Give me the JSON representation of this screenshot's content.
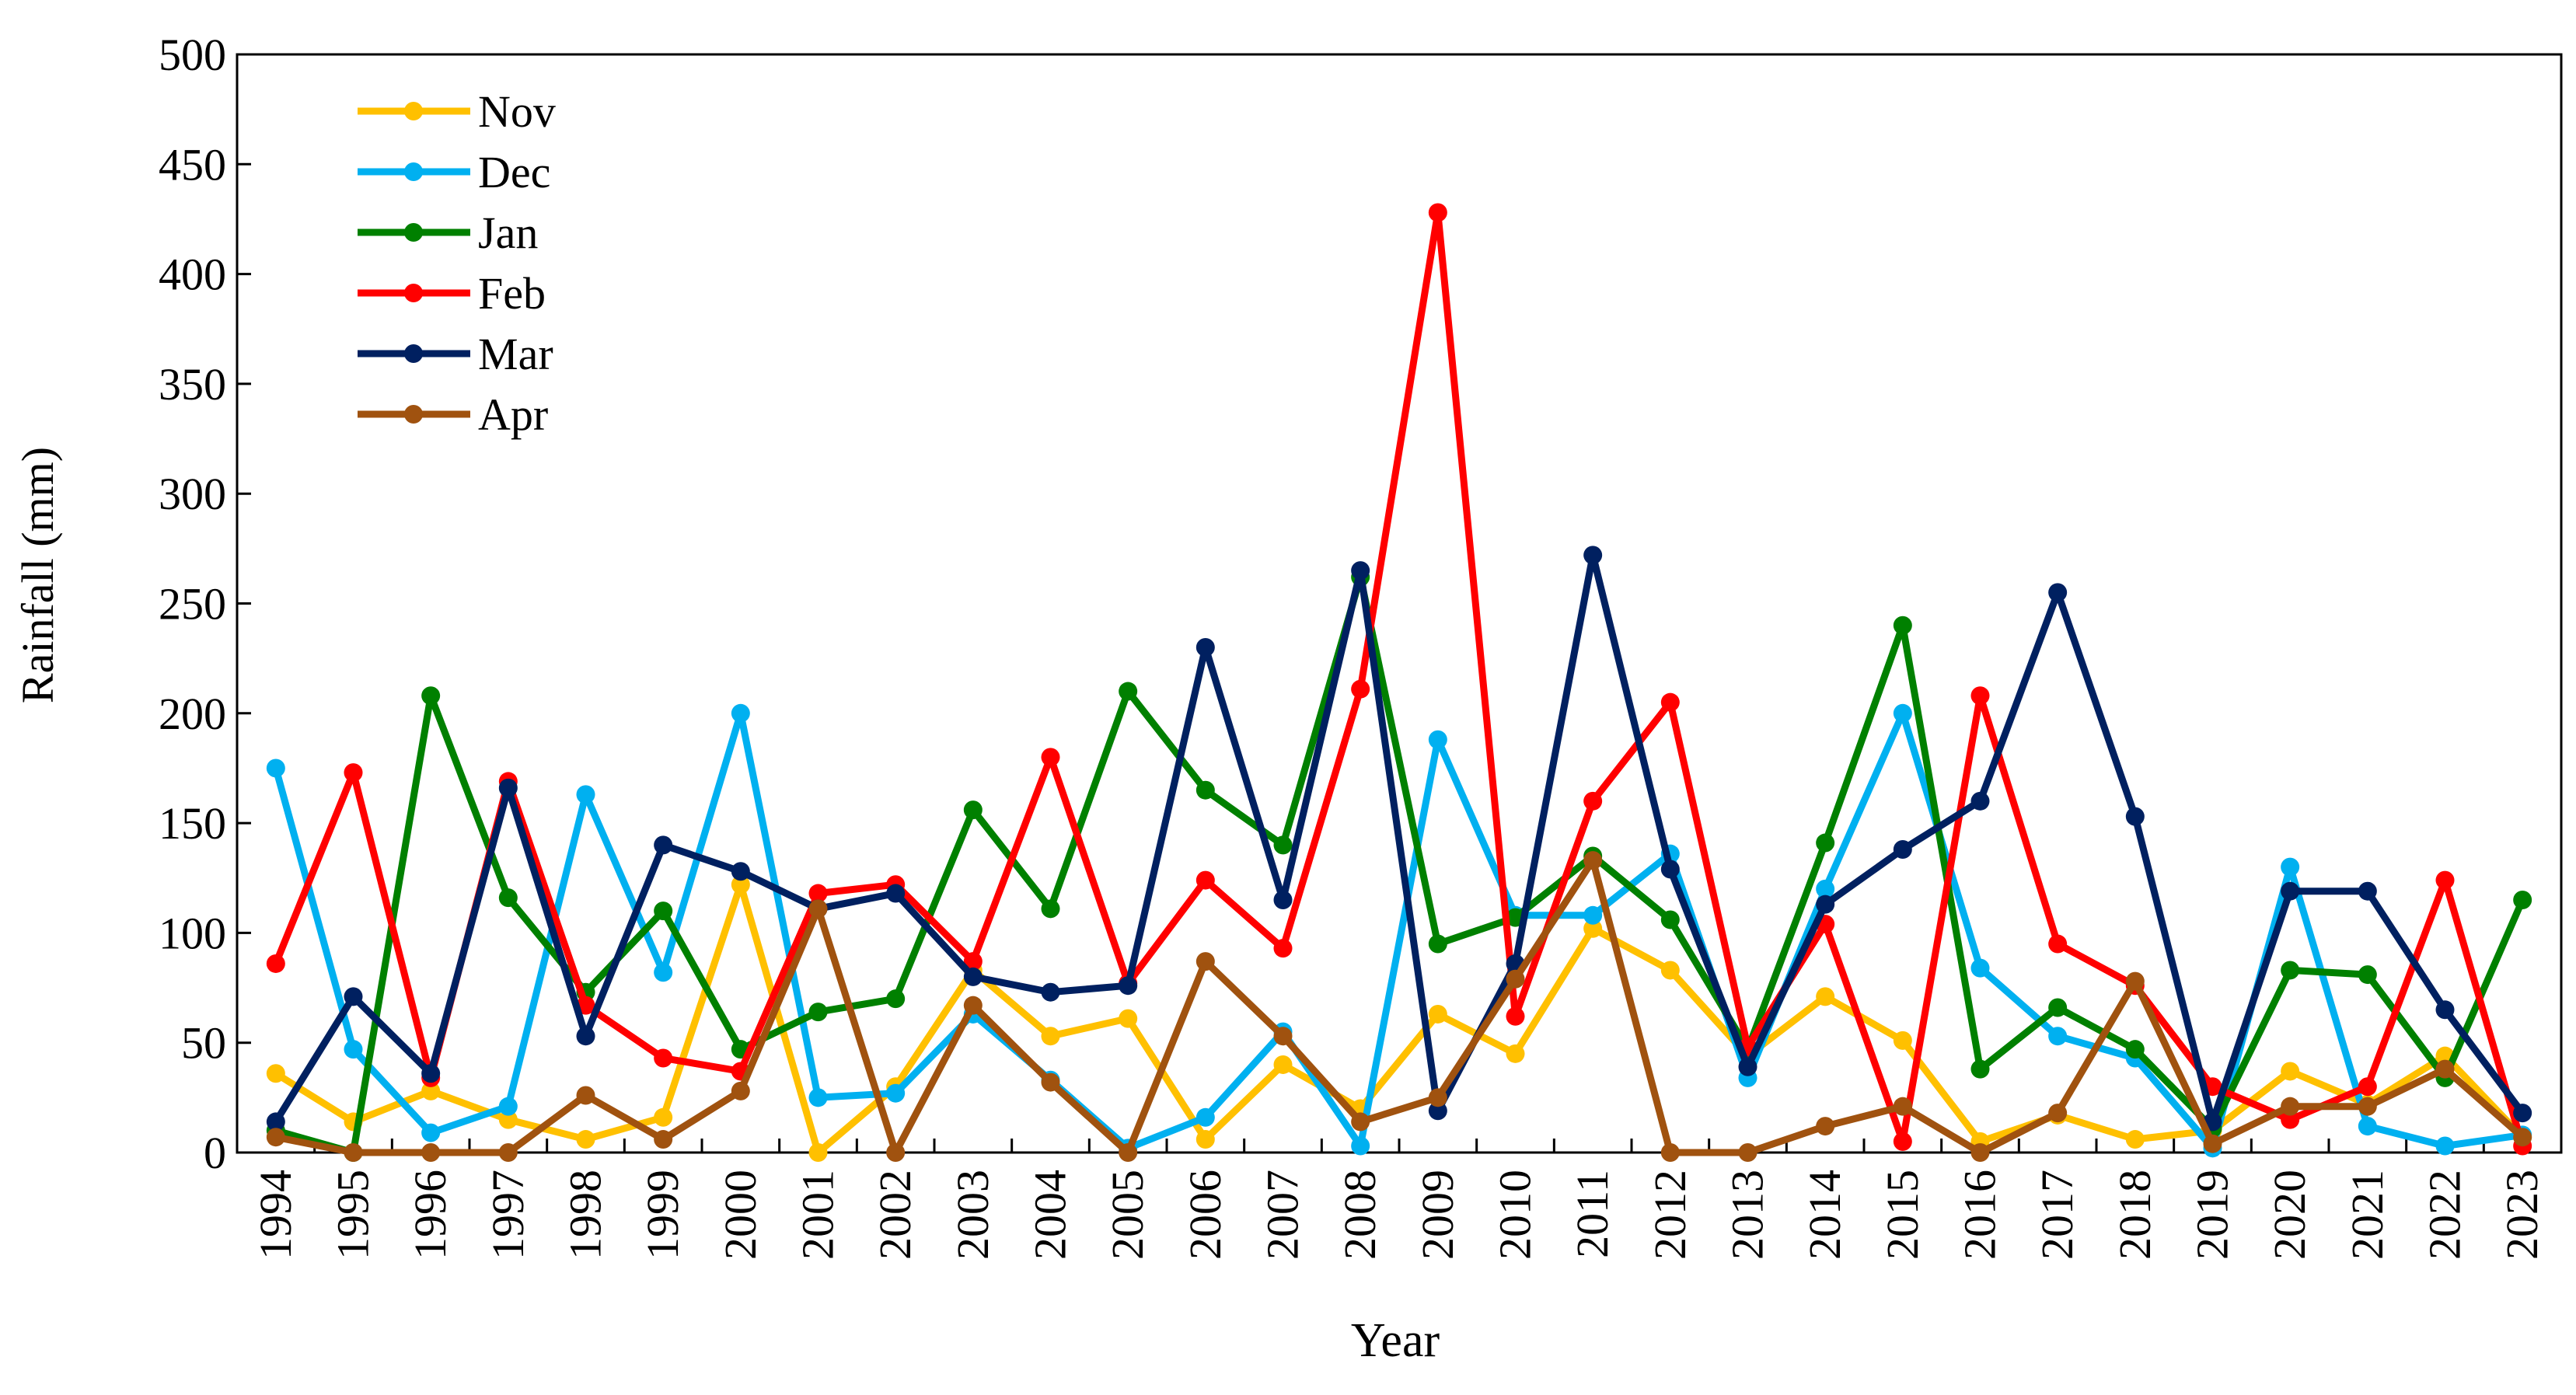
{
  "chart_data": {
    "type": "line",
    "title": "",
    "xlabel": "Year",
    "ylabel": "Rainfall (mm)",
    "ylim": [
      0,
      500
    ],
    "yticks": [
      0,
      50,
      100,
      150,
      200,
      250,
      300,
      350,
      400,
      450,
      500
    ],
    "grid": false,
    "legend_position": "top-left",
    "x": [
      "1994",
      "1995",
      "1996",
      "1997",
      "1998",
      "1999",
      "2000",
      "2001",
      "2002",
      "2003",
      "2004",
      "2005",
      "2006",
      "2007",
      "2008",
      "2009",
      "2010",
      "2011",
      "2012",
      "2013",
      "2014",
      "2015",
      "2016",
      "2017",
      "2018",
      "2019",
      "2020",
      "2021",
      "2022",
      "2023"
    ],
    "series": [
      {
        "name": "Nov",
        "color": "#FFC000",
        "values": [
          36,
          14,
          28,
          15,
          6,
          16,
          122,
          0,
          30,
          83,
          53,
          61,
          6,
          40,
          20,
          63,
          45,
          102,
          83,
          44,
          71,
          51,
          5,
          17,
          6,
          10,
          37,
          22,
          44,
          7
        ]
      },
      {
        "name": "Dec",
        "color": "#00B0F0",
        "values": [
          175,
          47,
          9,
          21,
          163,
          82,
          200,
          25,
          27,
          63,
          33,
          2,
          16,
          55,
          3,
          188,
          108,
          108,
          136,
          34,
          120,
          200,
          84,
          53,
          43,
          2,
          130,
          12,
          3,
          8
        ]
      },
      {
        "name": "Jan",
        "color": "#008000",
        "values": [
          10,
          0,
          208,
          116,
          73,
          110,
          47,
          64,
          70,
          156,
          111,
          210,
          165,
          140,
          262,
          95,
          107,
          135,
          106,
          47,
          141,
          240,
          38,
          66,
          47,
          11,
          83,
          81,
          34,
          115
        ]
      },
      {
        "name": "Feb",
        "color": "#FF0000",
        "values": [
          86,
          173,
          34,
          169,
          67,
          43,
          37,
          118,
          122,
          87,
          180,
          77,
          124,
          93,
          211,
          428,
          62,
          160,
          205,
          48,
          104,
          5,
          208,
          95,
          76,
          30,
          15,
          30,
          124,
          3
        ]
      },
      {
        "name": "Mar",
        "color": "#002060",
        "values": [
          14,
          71,
          36,
          166,
          53,
          140,
          128,
          111,
          118,
          80,
          73,
          76,
          230,
          115,
          265,
          19,
          86,
          272,
          129,
          39,
          113,
          138,
          160,
          255,
          153,
          14,
          119,
          119,
          65,
          18
        ]
      },
      {
        "name": "Apr",
        "color": "#A0520F",
        "values": [
          7,
          0,
          0,
          0,
          26,
          6,
          28,
          111,
          0,
          67,
          32,
          0,
          87,
          53,
          14,
          25,
          79,
          133,
          0,
          0,
          12,
          21,
          0,
          18,
          78,
          4,
          21,
          21,
          38,
          7
        ]
      }
    ]
  }
}
